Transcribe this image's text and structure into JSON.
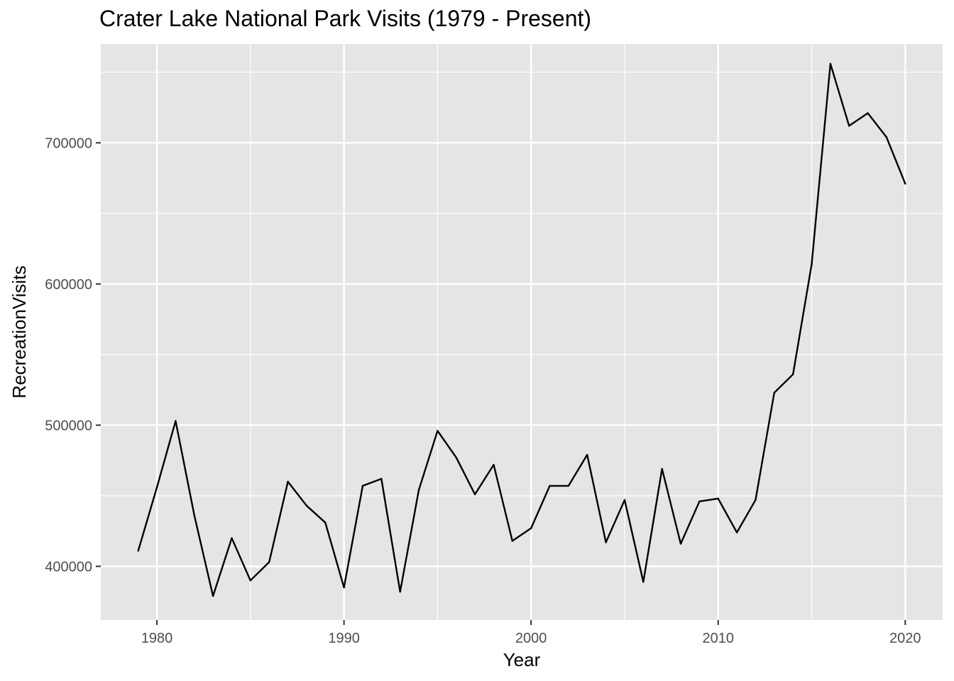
{
  "chart_data": {
    "type": "line",
    "title": "Crater Lake National Park Visits (1979 - Present)",
    "xlabel": "Year",
    "ylabel": "RecreationVisits",
    "xlim": [
      1977,
      2022
    ],
    "ylim": [
      362000,
      770000
    ],
    "xticks": [
      1980,
      1990,
      2000,
      2010,
      2020
    ],
    "xtick_labels": [
      "1980",
      "1990",
      "2000",
      "2010",
      "2020"
    ],
    "yticks": [
      400000,
      500000,
      600000,
      700000
    ],
    "ytick_labels": [
      "400000",
      "500000",
      "600000",
      "700000"
    ],
    "grid": true,
    "background": "#e5e5e5",
    "grid_color": "#ffffff",
    "line_color": "#000000",
    "series": [
      {
        "x": [
          1979,
          1980,
          1981,
          1982,
          1983,
          1984,
          1985,
          1986,
          1987,
          1988,
          1989,
          1990,
          1991,
          1992,
          1993,
          1994,
          1995,
          1996,
          1997,
          1998,
          1999,
          2000,
          2001,
          2002,
          2003,
          2004,
          2005,
          2006,
          2007,
          2008,
          2009,
          2010,
          2011,
          2012,
          2013,
          2014,
          2015,
          2016,
          2017,
          2018,
          2019,
          2020
        ],
        "values": [
          411000,
          456000,
          503000,
          436000,
          379000,
          420000,
          390000,
          403000,
          460000,
          443000,
          431000,
          385000,
          457000,
          462000,
          382000,
          454000,
          496000,
          477000,
          451000,
          472000,
          418000,
          427000,
          457000,
          457000,
          479000,
          417000,
          447000,
          389000,
          469000,
          416000,
          446000,
          448000,
          424000,
          447000,
          523000,
          536000,
          614000,
          756000,
          712000,
          721000,
          704000,
          671000
        ]
      }
    ]
  }
}
